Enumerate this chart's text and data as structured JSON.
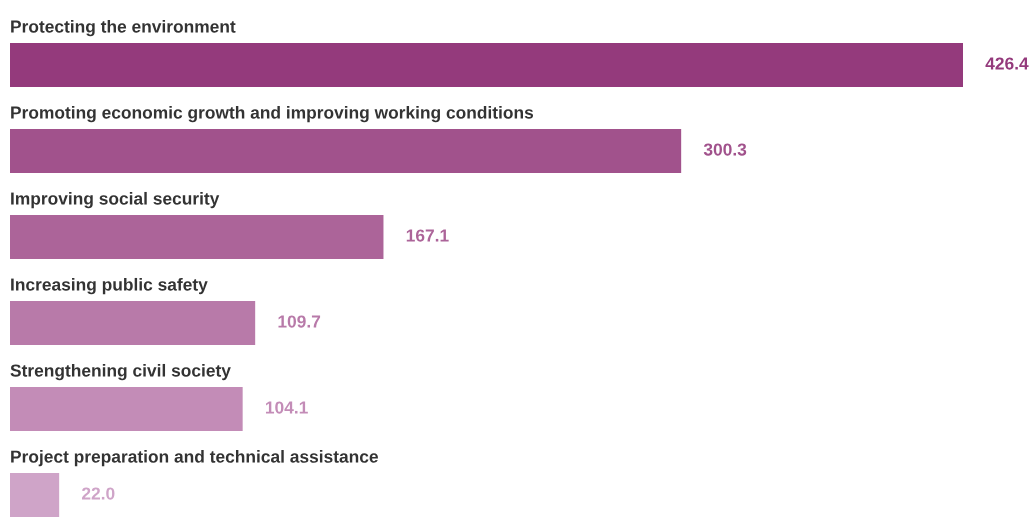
{
  "chart_data": {
    "type": "bar",
    "orientation": "horizontal",
    "categories": [
      "Protecting the environment",
      "Promoting economic growth and improving working conditions",
      "Improving social security",
      "Increasing public safety",
      "Strengthening civil society",
      "Project preparation and technical assistance"
    ],
    "values": [
      426.4,
      300.3,
      167.1,
      109.7,
      104.1,
      22.0
    ],
    "colors": [
      "#943a7c",
      "#a1528c",
      "#ac6499",
      "#b87aa9",
      "#c38cb7",
      "#cfa4c8"
    ],
    "value_labels": [
      "426.4",
      "300.3",
      "167.1",
      "109.7",
      "104.1",
      "22.0"
    ]
  }
}
